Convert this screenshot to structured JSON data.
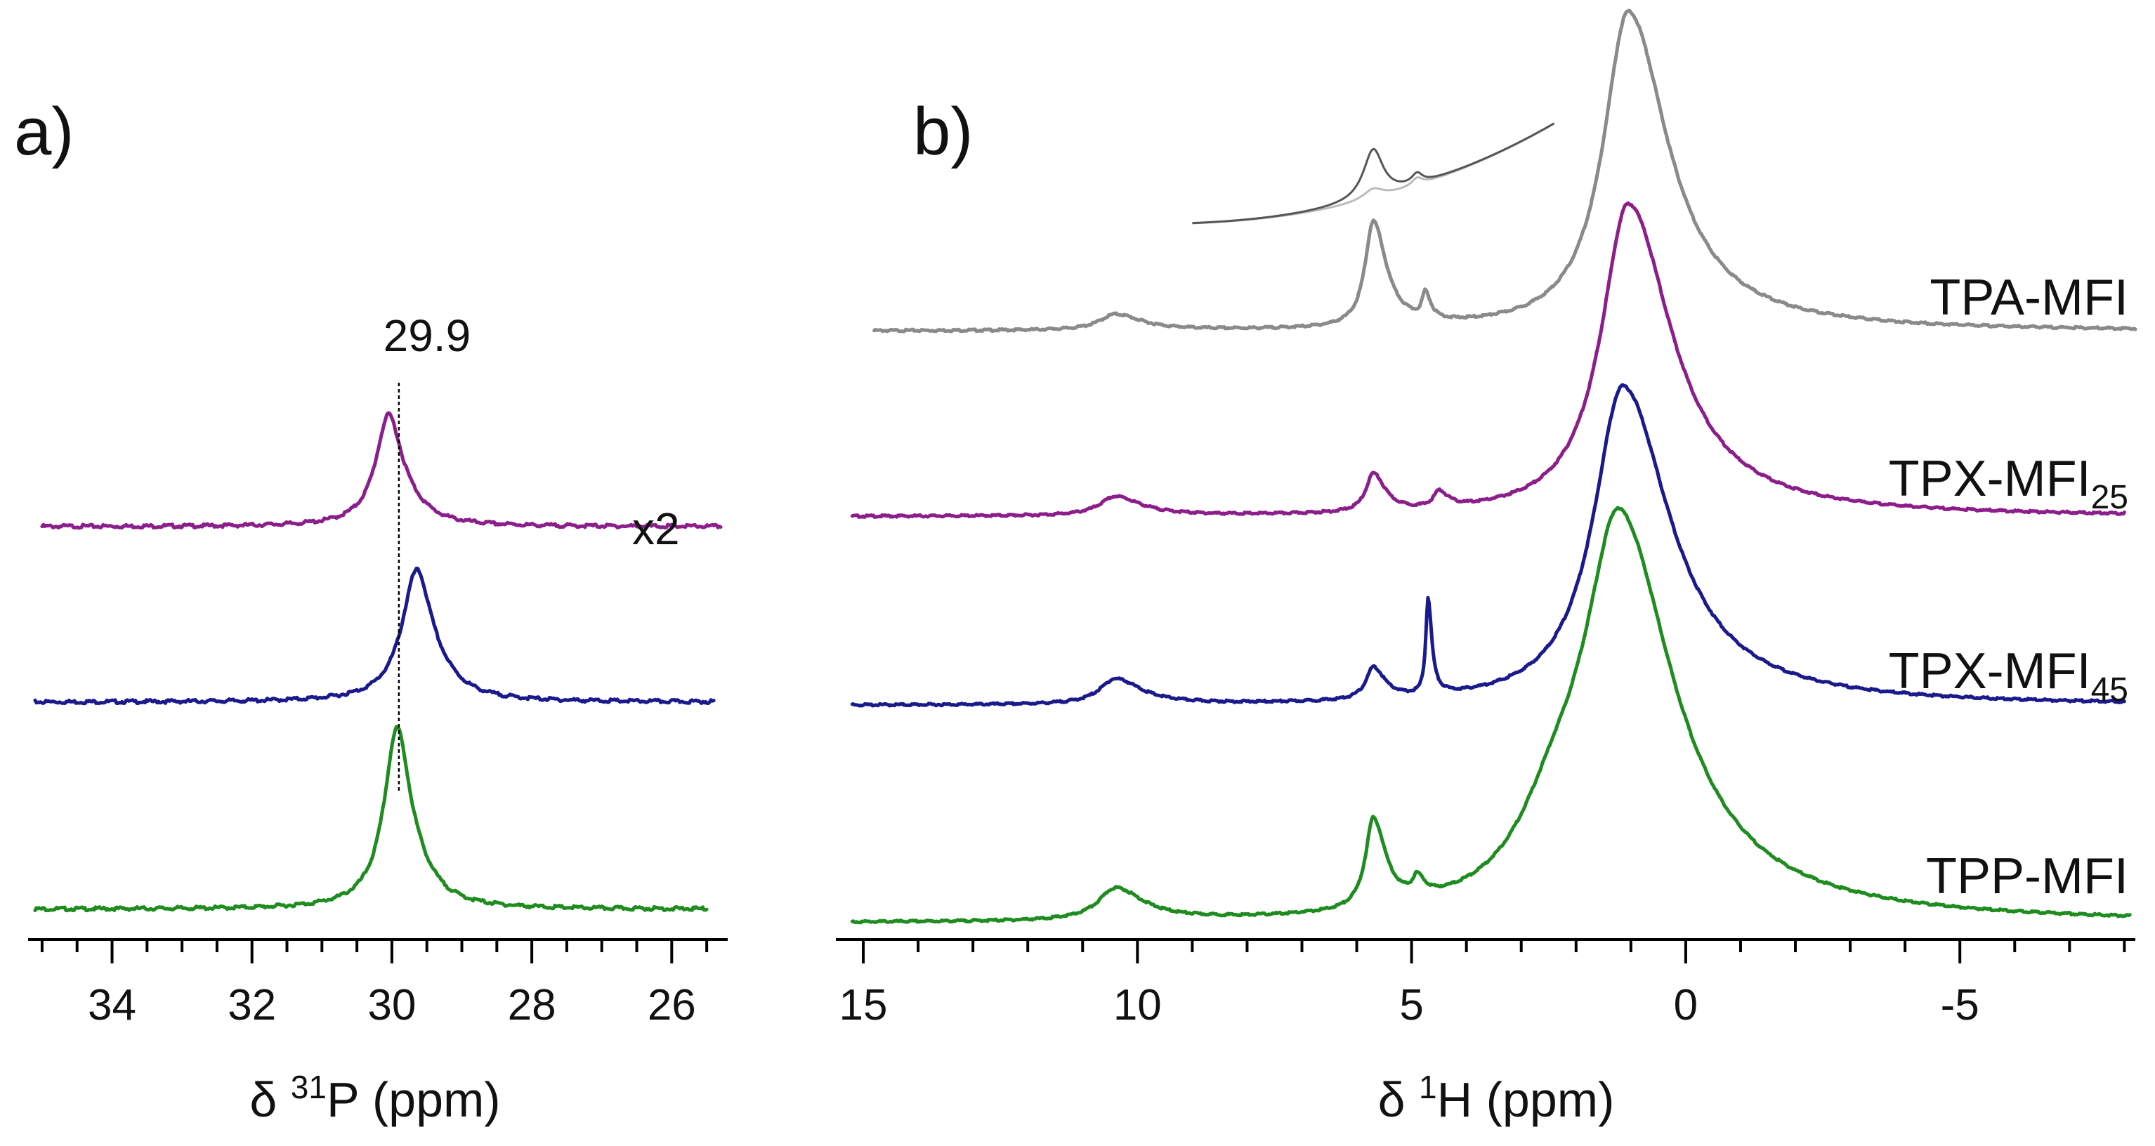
{
  "chart_data": [
    {
      "type": "line",
      "panel_label": "a)",
      "xlabel": "δ ³¹P (ppm)",
      "xlabel_parts": {
        "prefix": "δ ",
        "sup": "31",
        "suffix": "P (ppm)"
      },
      "xlim": [
        35.2,
        25.2
      ],
      "xticks": [
        "34",
        "32",
        "30",
        "28",
        "26"
      ],
      "xtick_values": [
        34,
        32,
        30,
        28,
        26
      ],
      "reference_line": {
        "value": 29.9,
        "label": "29.9"
      },
      "scale_note": "x2",
      "series": [
        {
          "name": "TPX-MFI25",
          "color": "#8B1E8B",
          "peak_ppm": 30.05,
          "peak_height": 0.9,
          "width": 0.22,
          "x_range": [
            35.0,
            25.3
          ]
        },
        {
          "name": "TPX-MFI45",
          "color": "#1A1A8C",
          "peak_ppm": 29.65,
          "peak_height": 0.95,
          "width": 0.25,
          "x_range": [
            35.1,
            25.4
          ]
        },
        {
          "name": "TPP-MFI",
          "color": "#1E8C1E",
          "peak_ppm": 29.93,
          "peak_height": 1.0,
          "width": 0.22,
          "x_range": [
            35.1,
            25.5
          ]
        }
      ]
    },
    {
      "type": "line",
      "panel_label": "b)",
      "xlabel": "δ ¹H (ppm)",
      "xlabel_parts": {
        "prefix": "δ ",
        "sup": "1",
        "suffix": "H (ppm)"
      },
      "xlim": [
        15.5,
        -8.2
      ],
      "xticks": [
        "15",
        "10",
        "5",
        "0",
        "-5"
      ],
      "xtick_values": [
        15,
        10,
        5,
        0,
        -5
      ],
      "series": [
        {
          "name": "TPA-MFI",
          "label_main": "TPA-MFI",
          "label_sub": "",
          "color": "#8A8A8A",
          "peaks": [
            [
              1.05,
              1.0,
              0.55
            ],
            [
              5.7,
              0.33,
              0.18
            ],
            [
              4.75,
              0.08,
              0.07
            ],
            [
              10.4,
              0.05,
              0.35
            ]
          ],
          "x_range": [
            14.8,
            -8.2
          ],
          "baseline_tilt": 0.012
        },
        {
          "name": "TPX-MFI25",
          "label_main": "TPX-MFI",
          "label_sub": "25",
          "color": "#8B1E8B",
          "peaks": [
            [
              1.05,
              0.98,
              0.6
            ],
            [
              5.7,
              0.12,
              0.16
            ],
            [
              4.5,
              0.05,
              0.12
            ],
            [
              10.4,
              0.06,
              0.35
            ]
          ],
          "x_range": [
            15.2,
            -8.0
          ],
          "baseline_tilt": 0.0
        },
        {
          "name": "TPX-MFI45",
          "label_main": "TPX-MFI",
          "label_sub": "45",
          "color": "#1A1A8C",
          "peaks": [
            [
              1.15,
              1.0,
              0.65
            ],
            [
              4.7,
              0.3,
              0.05
            ],
            [
              5.7,
              0.1,
              0.16
            ],
            [
              10.4,
              0.08,
              0.35
            ]
          ],
          "x_range": [
            15.2,
            -8.0
          ],
          "baseline_tilt": 0.0
        },
        {
          "name": "TPP-MFI",
          "label_main": "TPP-MFI",
          "label_sub": "",
          "color": "#1E8C1E",
          "peaks": [
            [
              1.2,
              1.0,
              0.75
            ],
            [
              2.3,
              0.25,
              0.9
            ],
            [
              5.7,
              0.25,
              0.17
            ],
            [
              4.9,
              0.05,
              0.1
            ],
            [
              10.4,
              0.09,
              0.38
            ]
          ],
          "x_range": [
            15.2,
            -8.1
          ],
          "baseline_tilt": 0.0
        }
      ],
      "inset": {
        "description_series": [
          "dark",
          "light"
        ],
        "color_dark": "#555555",
        "color_light": "#BBBBBB",
        "x_range": [
          9.0,
          2.4
        ],
        "peaks_dark": [
          [
            5.7,
            1.0,
            0.22
          ],
          [
            4.9,
            0.2,
            0.12
          ]
        ],
        "peaks_light": [
          [
            5.7,
            0.2,
            0.22
          ],
          [
            4.9,
            0.15,
            0.12
          ]
        ]
      }
    }
  ]
}
